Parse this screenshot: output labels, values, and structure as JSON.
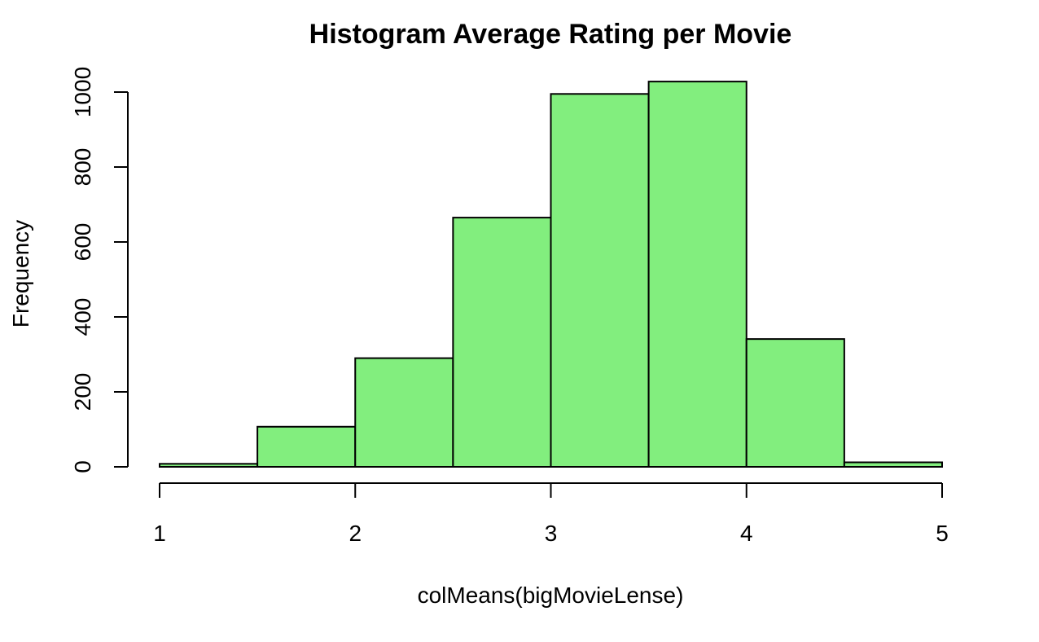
{
  "chart_data": {
    "type": "bar",
    "subtype": "histogram",
    "title": "Histogram Average Rating per Movie",
    "xlabel": "colMeans(bigMovieLense)",
    "ylabel": "Frequency",
    "bins": [
      {
        "start": 1.0,
        "end": 1.5,
        "count": 8
      },
      {
        "start": 1.5,
        "end": 2.0,
        "count": 107
      },
      {
        "start": 2.0,
        "end": 2.5,
        "count": 290
      },
      {
        "start": 2.5,
        "end": 3.0,
        "count": 665
      },
      {
        "start": 3.0,
        "end": 3.5,
        "count": 995
      },
      {
        "start": 3.5,
        "end": 4.0,
        "count": 1028
      },
      {
        "start": 4.0,
        "end": 4.5,
        "count": 341
      },
      {
        "start": 4.5,
        "end": 5.0,
        "count": 12
      }
    ],
    "xlim": [
      1,
      5
    ],
    "ylim": [
      0,
      1030
    ],
    "x_ticks": [
      "1",
      "2",
      "3",
      "4",
      "5"
    ],
    "y_ticks": [
      "0",
      "200",
      "400",
      "600",
      "800",
      "1000"
    ],
    "bar_color": "#82ee7e",
    "grid": false
  }
}
